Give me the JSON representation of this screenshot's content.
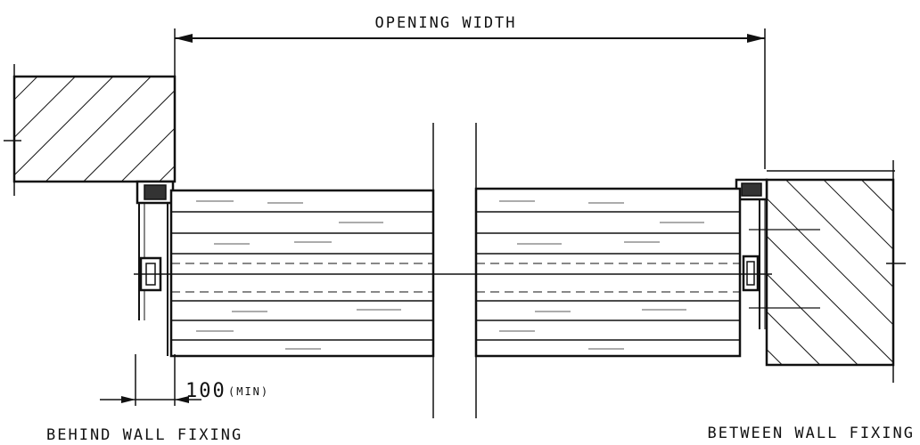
{
  "labels": {
    "opening_width": "OPENING WIDTH",
    "dimension_value": "100",
    "dimension_suffix": "(MIN)",
    "behind_wall_fixing": "BEHIND WALL FIXING",
    "between_wall_fixing": "BETWEEN WALL FIXING"
  },
  "colors": {
    "ink": "#111111",
    "paper": "#ffffff"
  }
}
